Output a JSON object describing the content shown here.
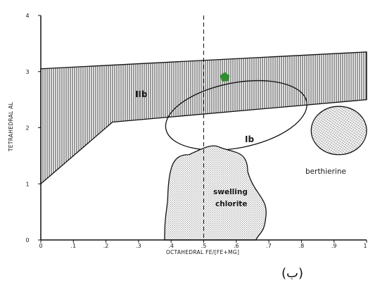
{
  "chart_data": {
    "type": "scatter",
    "title": "",
    "xlabel": "OCTAHEDRAL FE/[FE+MG]",
    "ylabel": "TETRAHEDRAL AL",
    "xlim": [
      0,
      1
    ],
    "ylim": [
      0,
      4
    ],
    "x_ticks": [
      "0",
      ".1",
      ".2",
      ".3",
      ".4",
      ".5",
      ".6",
      ".7",
      ".8",
      ".9",
      "1"
    ],
    "y_ticks": [
      "0",
      "1",
      "2",
      "3",
      "4"
    ],
    "grid": false,
    "legend": "none",
    "reference_line": {
      "x": 0.5,
      "style": "dashed"
    },
    "regions": [
      {
        "label": "IIb",
        "fill": "vertical-hatch",
        "boundary": [
          [
            0,
            3.05
          ],
          [
            1,
            3.35
          ],
          [
            1,
            2.5
          ],
          [
            0.22,
            2.1
          ],
          [
            0,
            1.0
          ]
        ]
      },
      {
        "label": "Ib",
        "fill": "none",
        "shape": "ellipse",
        "center": [
          0.6,
          2.22
        ],
        "radius": [
          0.22,
          0.58
        ],
        "rotation_deg": -11
      },
      {
        "label": "swelling\nchlorite",
        "fill": "stipple",
        "shape": "blob",
        "boundary": [
          [
            0.38,
            0
          ],
          [
            0.39,
            0.82
          ],
          [
            0.455,
            1.52
          ],
          [
            0.55,
            1.65
          ],
          [
            0.635,
            1.22
          ],
          [
            0.69,
            0.38
          ],
          [
            0.66,
            0
          ]
        ]
      },
      {
        "label": "berthierine",
        "fill": "stipple-hatch",
        "shape": "ellipse",
        "center": [
          0.915,
          1.95
        ],
        "radius": [
          0.085,
          0.43
        ],
        "rotation_deg": 0
      }
    ],
    "points": [
      {
        "x": 0.565,
        "y": 2.9,
        "color": "#2f8f2f",
        "marker": "star"
      }
    ]
  },
  "caption": "(ب)"
}
